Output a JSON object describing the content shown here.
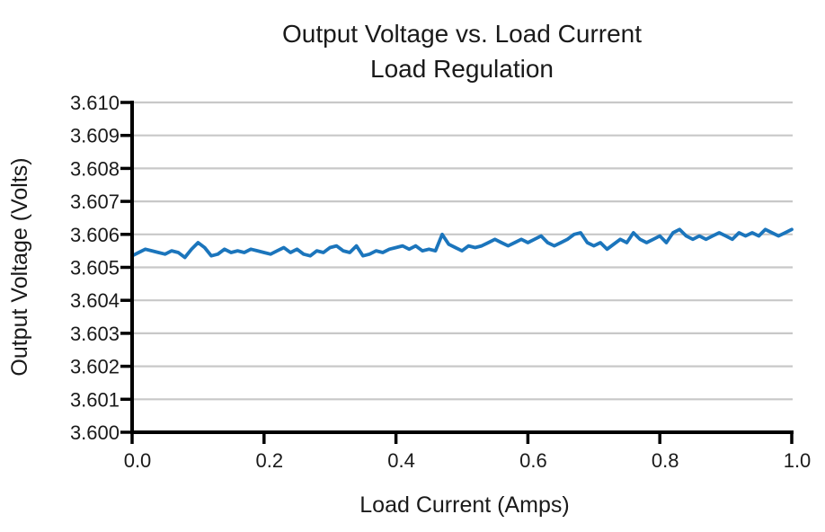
{
  "figure": {
    "title": "Output Voltage vs. Load Current",
    "subtitle": "Load Regulation"
  },
  "chart_data": {
    "type": "line",
    "title": "Output Voltage vs. Load Current",
    "subtitle": "Load Regulation",
    "xlabel": "Load Current (Amps)",
    "ylabel": "Output Voltage (Volts)",
    "xlim": [
      0.0,
      1.0
    ],
    "ylim": [
      3.6,
      3.61
    ],
    "x_ticks": [
      0.0,
      0.2,
      0.4,
      0.6,
      0.8,
      1.0
    ],
    "x_tick_labels": [
      "0.0",
      "0.2",
      "0.4",
      "0.6",
      "0.8",
      "1.0"
    ],
    "y_ticks": [
      3.6,
      3.601,
      3.602,
      3.603,
      3.604,
      3.605,
      3.606,
      3.607,
      3.608,
      3.609,
      3.61
    ],
    "y_tick_labels": [
      "3.600",
      "3.601",
      "3.602",
      "3.603",
      "3.604",
      "3.605",
      "3.606",
      "3.607",
      "3.608",
      "3.609",
      "3.610"
    ],
    "grid": "horizontal",
    "legend": "none",
    "series": [
      {
        "name": "Output Voltage",
        "color": "#1b75bc",
        "x_start": 0.0,
        "x_step": 0.01,
        "values": [
          3.60535,
          3.60545,
          3.60555,
          3.6055,
          3.60545,
          3.6054,
          3.6055,
          3.60545,
          3.6053,
          3.60555,
          3.60575,
          3.6056,
          3.60535,
          3.6054,
          3.60555,
          3.60545,
          3.6055,
          3.60545,
          3.60555,
          3.6055,
          3.60545,
          3.6054,
          3.6055,
          3.6056,
          3.60545,
          3.60555,
          3.6054,
          3.60535,
          3.6055,
          3.60545,
          3.6056,
          3.60565,
          3.6055,
          3.60545,
          3.60565,
          3.60535,
          3.6054,
          3.6055,
          3.60545,
          3.60555,
          3.6056,
          3.60565,
          3.60555,
          3.60565,
          3.6055,
          3.60555,
          3.6055,
          3.606,
          3.6057,
          3.6056,
          3.6055,
          3.60565,
          3.6056,
          3.60565,
          3.60575,
          3.60585,
          3.60575,
          3.60565,
          3.60575,
          3.60585,
          3.60575,
          3.60585,
          3.60595,
          3.60575,
          3.60565,
          3.60575,
          3.60585,
          3.606,
          3.60605,
          3.60575,
          3.60565,
          3.60575,
          3.60555,
          3.6057,
          3.60585,
          3.60575,
          3.60605,
          3.60585,
          3.60575,
          3.60585,
          3.60595,
          3.60575,
          3.60605,
          3.60615,
          3.60595,
          3.60585,
          3.60595,
          3.60585,
          3.60595,
          3.60605,
          3.60595,
          3.60585,
          3.60605,
          3.60595,
          3.60605,
          3.60595,
          3.60615,
          3.60605,
          3.60595,
          3.60605,
          3.60615
        ]
      }
    ]
  },
  "style": {
    "line_color": "#1b75bc",
    "grid_color": "#c8c8c8",
    "axis_color": "#000000",
    "text_color": "#1a1a1a",
    "background": "#ffffff"
  }
}
